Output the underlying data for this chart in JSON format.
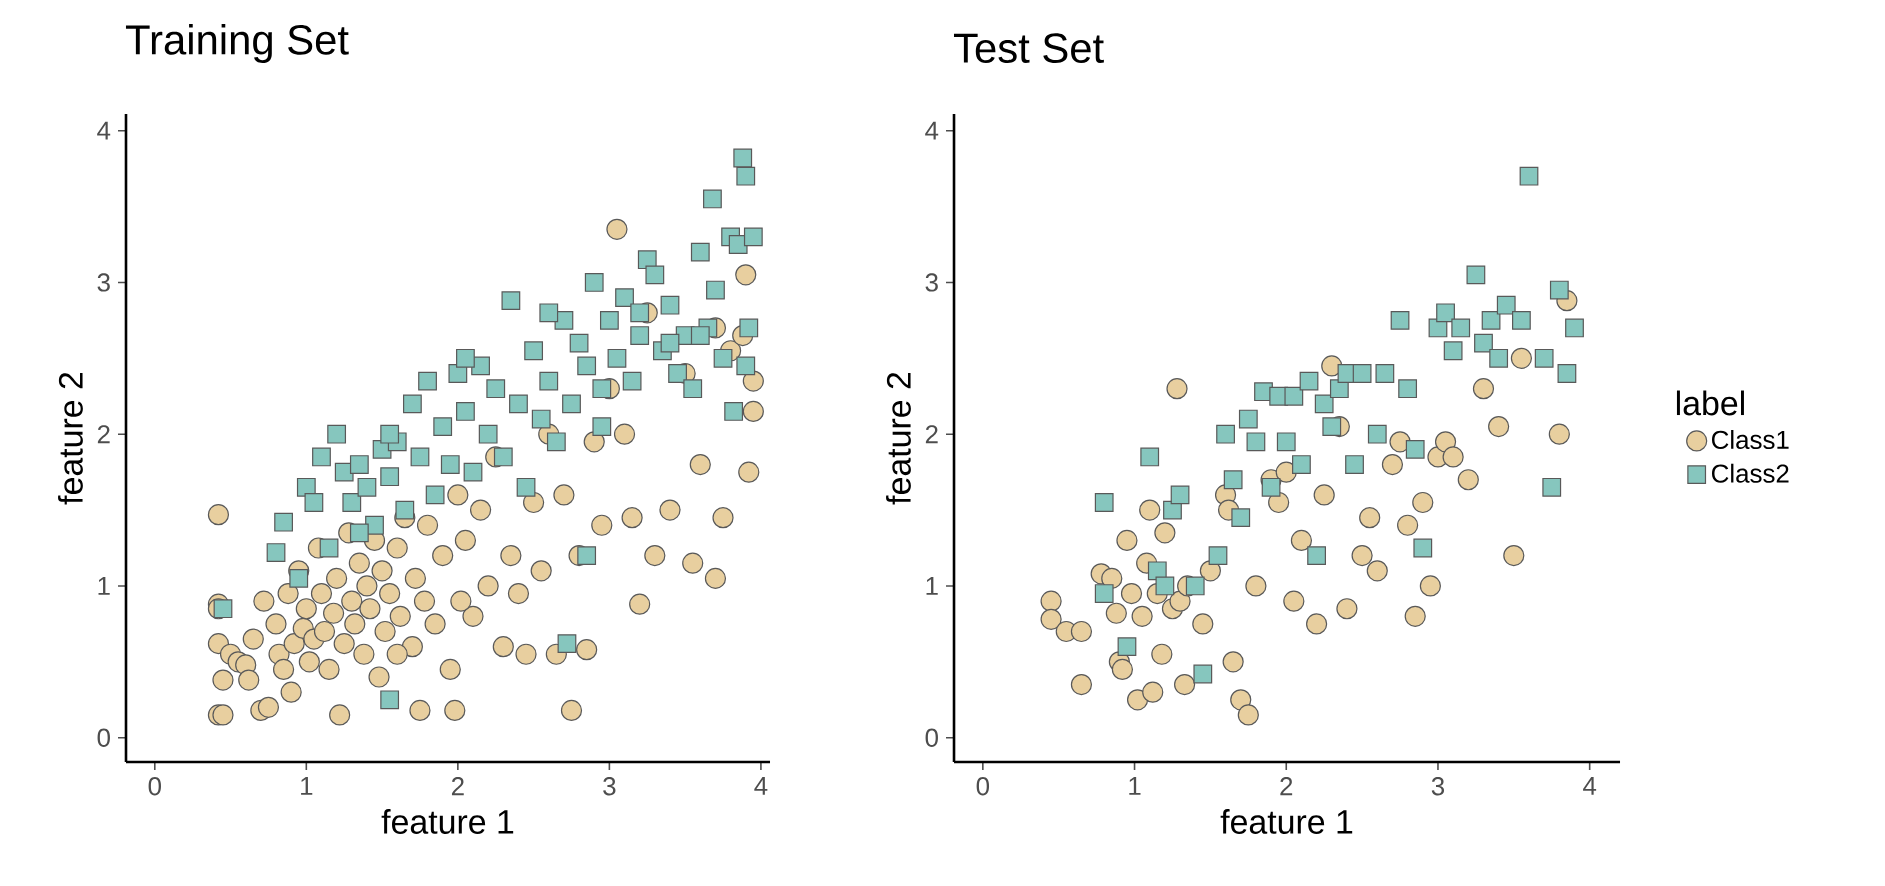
{
  "chart_data": [
    {
      "type": "scatter",
      "title": "Training Set",
      "xlabel": "feature 1",
      "ylabel": "feature 2",
      "xlim": [
        -0.19,
        4.06
      ],
      "ylim": [
        -0.16,
        4.11
      ],
      "xticks": [
        0,
        1,
        2,
        3,
        4
      ],
      "yticks": [
        0,
        1,
        2,
        3,
        4
      ],
      "series": [
        {
          "color": "#e8cf9f",
          "marker": "circle",
          "x": [
            0.42,
            0.42,
            0.42,
            0.42,
            0.45,
            0.42,
            0.45,
            0.5,
            0.55,
            0.6,
            0.62,
            0.65,
            0.7,
            0.75,
            0.72,
            0.8,
            0.82,
            0.85,
            0.88,
            0.9,
            0.92,
            0.95,
            0.98,
            1.0,
            1.02,
            1.05,
            1.08,
            1.1,
            1.12,
            1.15,
            1.18,
            1.2,
            1.22,
            1.25,
            1.28,
            1.3,
            1.32,
            1.35,
            1.38,
            1.4,
            1.42,
            1.45,
            1.48,
            1.5,
            1.52,
            1.55,
            1.6,
            1.62,
            1.65,
            1.7,
            1.72,
            1.75,
            1.78,
            1.8,
            1.85,
            1.9,
            1.95,
            1.98,
            2.0,
            2.05,
            2.1,
            2.15,
            2.2,
            2.25,
            2.3,
            2.35,
            2.4,
            2.45,
            2.5,
            2.55,
            2.6,
            2.65,
            2.7,
            2.75,
            2.8,
            2.85,
            2.9,
            2.95,
            3.0,
            3.05,
            3.1,
            3.15,
            3.2,
            3.25,
            3.3,
            3.4,
            3.5,
            3.55,
            3.6,
            3.7,
            3.75,
            3.8,
            3.9,
            3.92,
            3.95,
            3.95,
            3.88,
            3.7,
            2.02,
            1.6
          ],
          "values": [
            1.47,
            0.88,
            0.85,
            0.15,
            0.15,
            0.62,
            0.38,
            0.55,
            0.5,
            0.48,
            0.38,
            0.65,
            0.18,
            0.2,
            0.9,
            0.75,
            0.55,
            0.45,
            0.95,
            0.3,
            0.62,
            1.1,
            0.72,
            0.85,
            0.5,
            0.65,
            1.25,
            0.95,
            0.7,
            0.45,
            0.82,
            1.05,
            0.15,
            0.62,
            1.35,
            0.9,
            0.75,
            1.15,
            0.55,
            1.0,
            0.85,
            1.3,
            0.4,
            1.1,
            0.7,
            0.95,
            1.25,
            0.8,
            1.45,
            0.6,
            1.05,
            0.18,
            0.9,
            1.4,
            0.75,
            1.2,
            0.45,
            0.18,
            1.6,
            1.3,
            0.8,
            1.5,
            1.0,
            1.85,
            0.6,
            1.2,
            0.95,
            0.55,
            1.55,
            1.1,
            2.0,
            0.55,
            1.6,
            0.18,
            1.2,
            0.58,
            1.95,
            1.4,
            2.3,
            3.35,
            2.0,
            1.45,
            0.88,
            2.8,
            1.2,
            1.5,
            2.4,
            1.15,
            1.8,
            1.05,
            1.45,
            2.55,
            3.05,
            1.75,
            2.15,
            2.35,
            2.65,
            2.7,
            0.9,
            0.55
          ]
        },
        {
          "color": "#86c6be",
          "marker": "square",
          "x": [
            0.45,
            0.8,
            0.85,
            0.95,
            1.0,
            1.05,
            1.1,
            1.15,
            1.2,
            1.25,
            1.3,
            1.35,
            1.4,
            1.45,
            1.5,
            1.55,
            1.55,
            1.6,
            1.65,
            1.7,
            1.75,
            1.8,
            1.85,
            1.9,
            1.95,
            2.0,
            2.05,
            2.1,
            2.15,
            2.2,
            2.25,
            2.3,
            2.35,
            2.4,
            2.45,
            2.5,
            2.55,
            2.6,
            2.65,
            2.7,
            2.72,
            2.75,
            2.8,
            2.85,
            2.85,
            2.9,
            2.95,
            3.0,
            3.05,
            3.1,
            3.15,
            3.2,
            3.25,
            3.3,
            3.35,
            3.4,
            3.45,
            3.5,
            3.55,
            3.6,
            3.65,
            3.68,
            3.7,
            3.75,
            3.8,
            3.82,
            3.85,
            3.88,
            3.9,
            3.92,
            3.95,
            3.9,
            3.6,
            3.2,
            2.05,
            1.55,
            1.35,
            2.6,
            2.95,
            3.4
          ],
          "values": [
            0.85,
            1.22,
            1.42,
            1.05,
            1.65,
            1.55,
            1.85,
            1.25,
            2.0,
            1.75,
            1.55,
            1.8,
            1.65,
            1.4,
            1.9,
            0.25,
            1.72,
            1.95,
            1.5,
            2.2,
            1.85,
            2.35,
            1.6,
            2.05,
            1.8,
            2.4,
            2.15,
            1.75,
            2.45,
            2.0,
            2.3,
            1.85,
            2.88,
            2.2,
            1.65,
            2.55,
            2.1,
            2.35,
            1.95,
            2.75,
            0.62,
            2.2,
            2.6,
            1.2,
            2.45,
            3.0,
            2.3,
            2.75,
            2.5,
            2.9,
            2.35,
            2.65,
            3.15,
            3.05,
            2.55,
            2.85,
            2.4,
            2.65,
            2.3,
            3.2,
            2.7,
            3.55,
            2.95,
            2.5,
            3.3,
            2.15,
            3.25,
            3.82,
            3.7,
            2.7,
            3.3,
            2.45,
            2.65,
            2.8,
            2.5,
            2.0,
            1.35,
            2.8,
            2.05,
            2.6
          ]
        }
      ]
    },
    {
      "type": "scatter",
      "title": "Test Set",
      "xlabel": "feature 1",
      "ylabel": "feature 2",
      "xlim": [
        -0.19,
        4.2
      ],
      "ylim": [
        -0.16,
        4.11
      ],
      "xticks": [
        0,
        1,
        2,
        3,
        4
      ],
      "yticks": [
        0,
        1,
        2,
        3,
        4
      ],
      "legend": "right",
      "legend_title": "label",
      "series": [
        {
          "name": "Class1",
          "color": "#e8cf9f",
          "marker": "circle",
          "x": [
            0.45,
            0.45,
            0.55,
            0.65,
            0.65,
            0.78,
            0.85,
            0.88,
            0.9,
            0.92,
            0.95,
            0.98,
            1.02,
            1.05,
            1.08,
            1.1,
            1.12,
            1.15,
            1.18,
            1.2,
            1.25,
            1.28,
            1.3,
            1.33,
            1.35,
            1.45,
            1.5,
            1.6,
            1.62,
            1.65,
            1.7,
            1.75,
            1.8,
            1.9,
            1.95,
            2.0,
            2.05,
            2.1,
            2.2,
            2.25,
            2.3,
            2.35,
            2.4,
            2.5,
            2.55,
            2.6,
            2.7,
            2.75,
            2.8,
            2.85,
            2.9,
            2.95,
            3.0,
            3.05,
            3.1,
            3.2,
            3.3,
            3.4,
            3.5,
            3.55,
            3.8,
            3.85
          ],
          "values": [
            0.9,
            0.78,
            0.7,
            0.35,
            0.7,
            1.08,
            1.05,
            0.82,
            0.5,
            0.45,
            1.3,
            0.95,
            0.25,
            0.8,
            1.15,
            1.5,
            0.3,
            0.95,
            0.55,
            1.35,
            0.85,
            2.3,
            0.9,
            0.35,
            1.0,
            0.75,
            1.1,
            1.6,
            1.5,
            0.5,
            0.25,
            0.15,
            1.0,
            1.7,
            1.55,
            1.75,
            0.9,
            1.3,
            0.75,
            1.6,
            2.45,
            2.05,
            0.85,
            1.2,
            1.45,
            1.1,
            1.8,
            1.95,
            1.4,
            0.8,
            1.55,
            1.0,
            1.85,
            1.95,
            1.85,
            1.7,
            2.3,
            2.05,
            1.2,
            2.5,
            2.0,
            2.88
          ]
        },
        {
          "name": "Class2",
          "color": "#86c6be",
          "marker": "square",
          "x": [
            0.8,
            0.8,
            0.95,
            1.1,
            1.15,
            1.2,
            1.25,
            1.3,
            1.4,
            1.45,
            1.55,
            1.6,
            1.65,
            1.7,
            1.75,
            1.8,
            1.85,
            1.9,
            1.95,
            2.0,
            2.05,
            2.1,
            2.15,
            2.2,
            2.25,
            2.3,
            2.35,
            2.4,
            2.45,
            2.5,
            2.6,
            2.65,
            2.75,
            2.8,
            2.85,
            2.9,
            3.0,
            3.05,
            3.1,
            3.15,
            3.25,
            3.3,
            3.35,
            3.4,
            3.45,
            3.55,
            3.6,
            3.7,
            3.75,
            3.8,
            3.85,
            3.9
          ],
          "values": [
            0.95,
            1.55,
            0.6,
            1.85,
            1.1,
            1.0,
            1.5,
            1.6,
            1.0,
            0.42,
            1.2,
            2.0,
            1.7,
            1.45,
            2.1,
            1.95,
            2.28,
            1.65,
            2.25,
            1.95,
            2.25,
            1.8,
            2.35,
            1.2,
            2.2,
            2.05,
            2.3,
            2.4,
            1.8,
            2.4,
            2.0,
            2.4,
            2.75,
            2.3,
            1.9,
            1.25,
            2.7,
            2.8,
            2.55,
            2.7,
            3.05,
            2.6,
            2.75,
            2.5,
            2.85,
            2.75,
            3.7,
            2.5,
            1.65,
            2.95,
            2.4,
            2.7
          ]
        }
      ]
    }
  ]
}
